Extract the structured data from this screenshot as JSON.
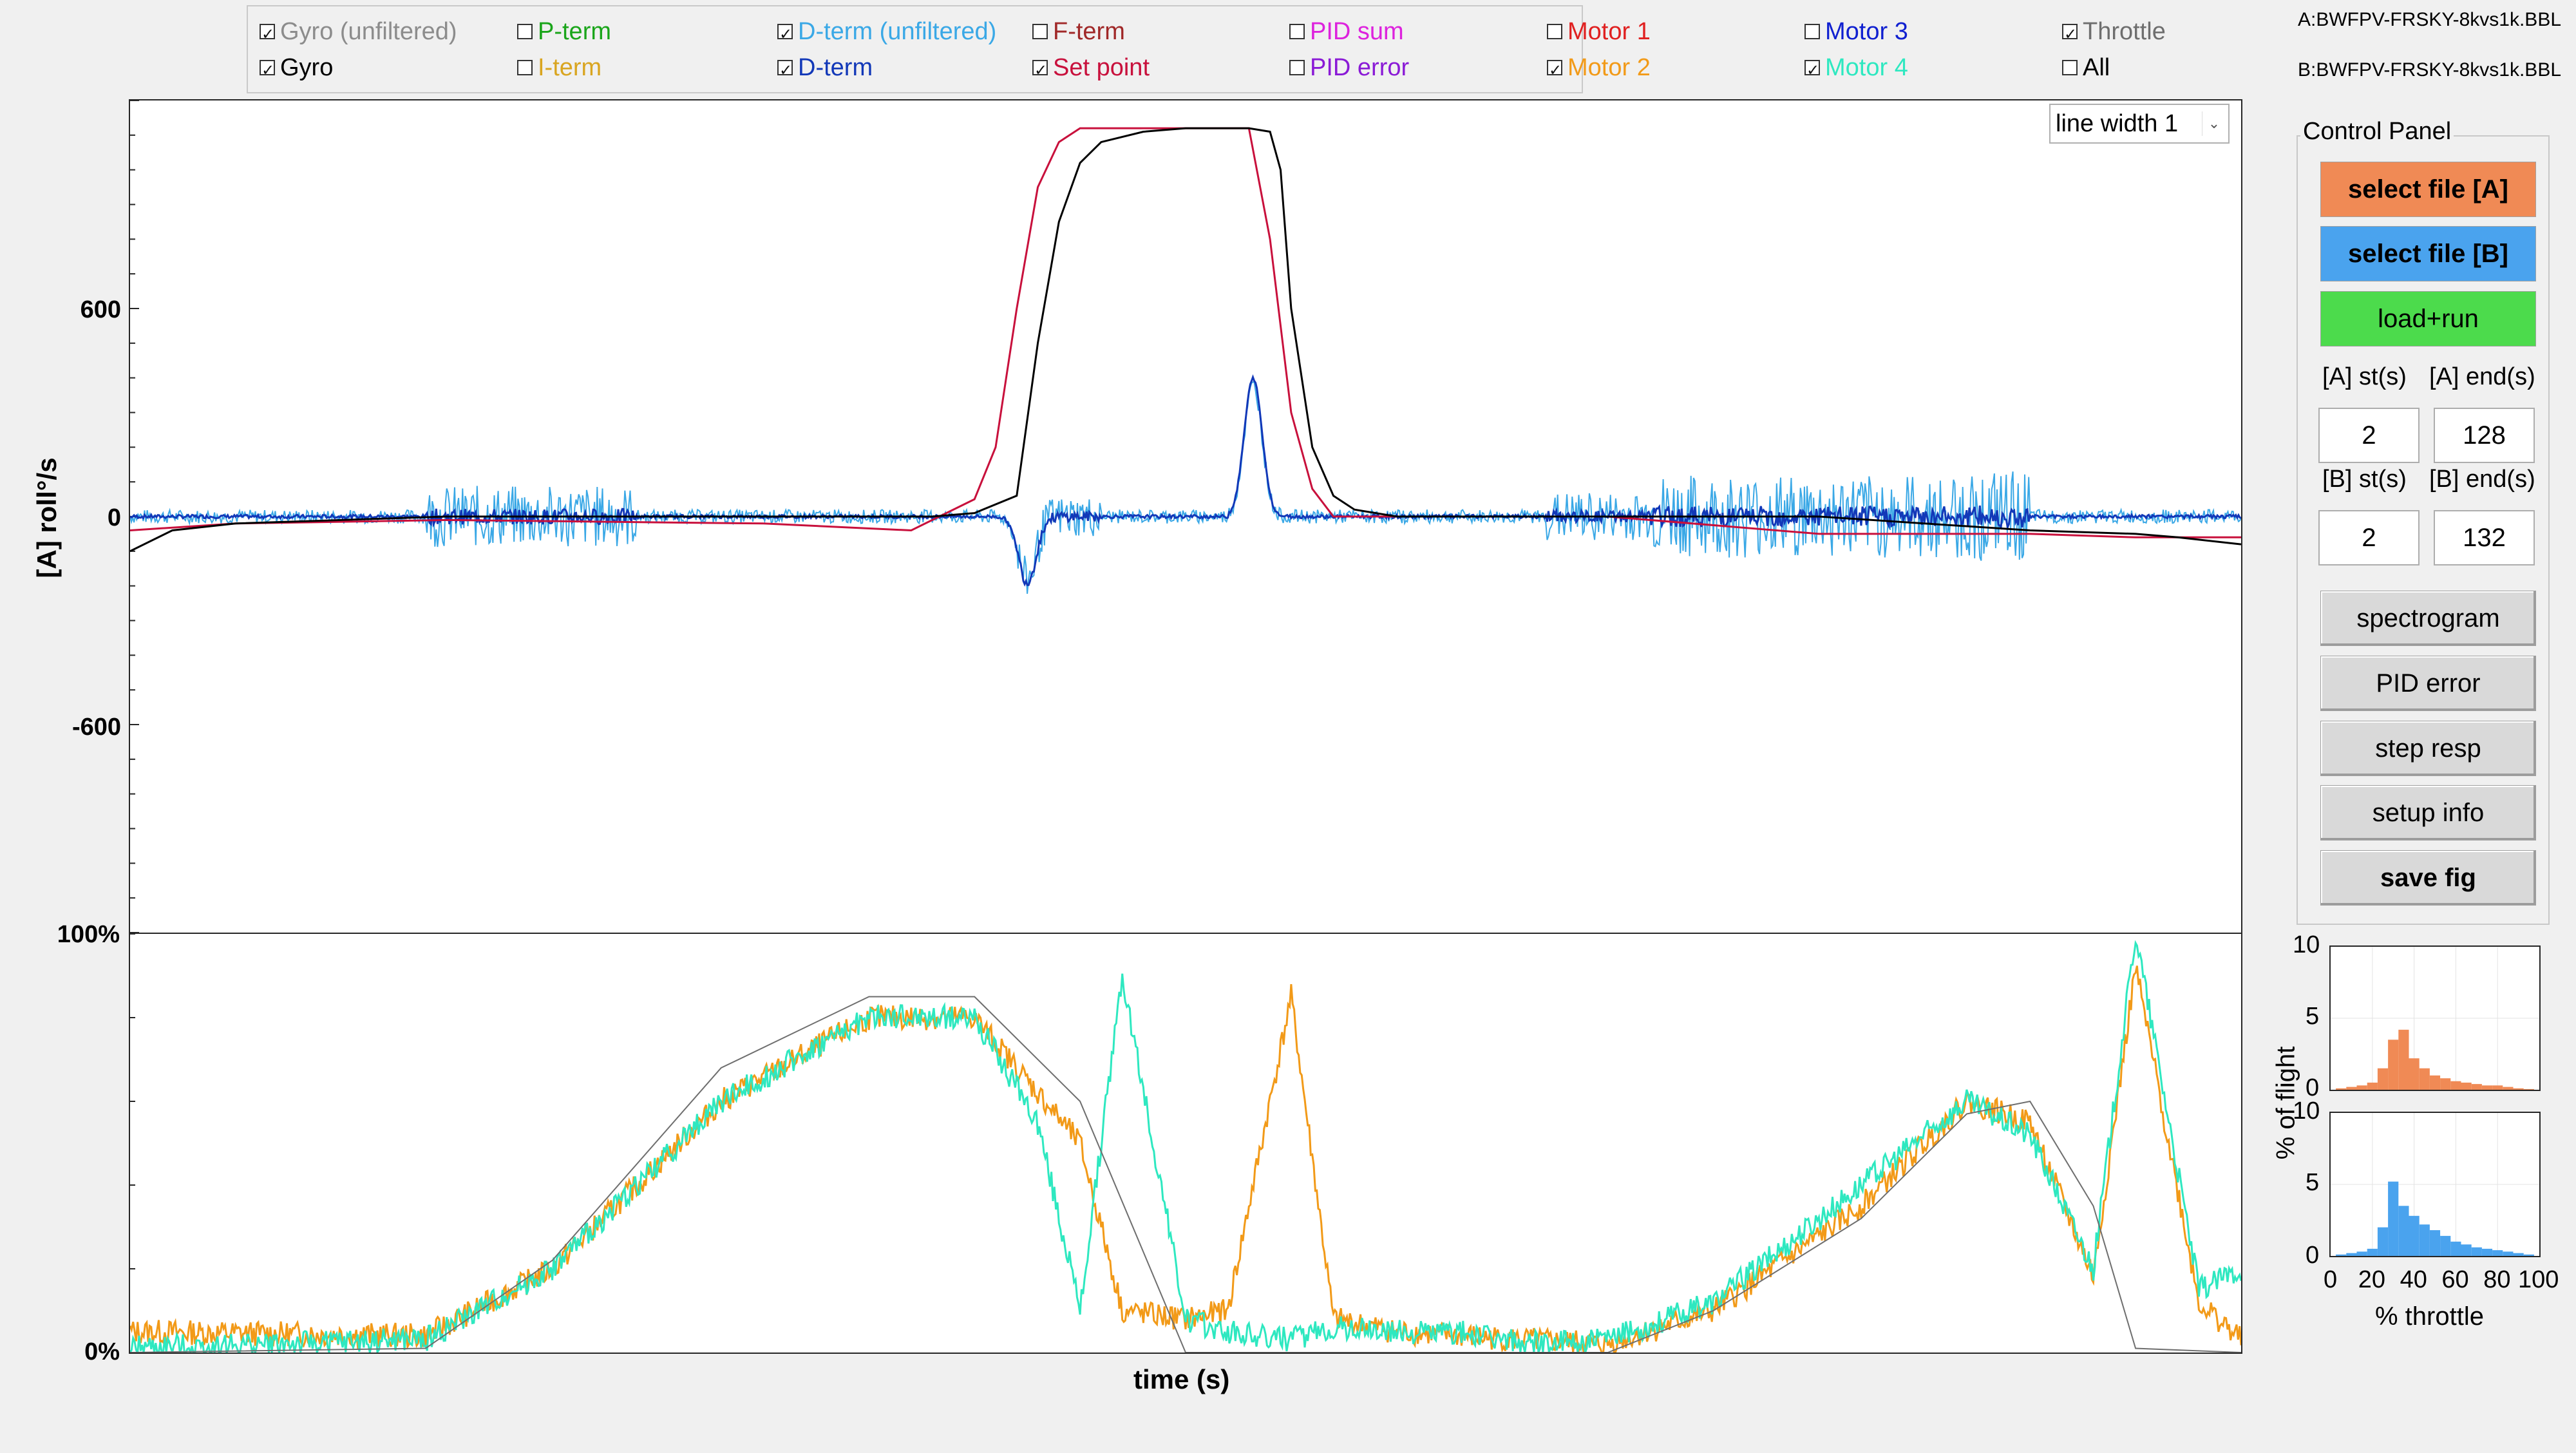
{
  "legend": {
    "items": [
      {
        "key": "gyro_unf",
        "label": "Gyro (unfiltered)",
        "checked": true,
        "color": "#8c8c8c"
      },
      {
        "key": "gyro",
        "label": "Gyro",
        "checked": true,
        "color": "#000000"
      },
      {
        "key": "pterm",
        "label": "P-term",
        "checked": false,
        "color": "#1aa51a"
      },
      {
        "key": "iterm",
        "label": "I-term",
        "checked": false,
        "color": "#d9a520"
      },
      {
        "key": "dterm_unf",
        "label": "D-term (unfiltered)",
        "checked": true,
        "color": "#3aa8e6"
      },
      {
        "key": "dterm",
        "label": "D-term",
        "checked": true,
        "color": "#1238b8"
      },
      {
        "key": "fterm",
        "label": "F-term",
        "checked": false,
        "color": "#a02828"
      },
      {
        "key": "setpoint",
        "label": "Set point",
        "checked": true,
        "color": "#c8103c"
      },
      {
        "key": "pidsum",
        "label": "PID sum",
        "checked": false,
        "color": "#dd22dd"
      },
      {
        "key": "piderr",
        "label": "PID error",
        "checked": false,
        "color": "#8a1ad6"
      },
      {
        "key": "motor1",
        "label": "Motor 1",
        "checked": false,
        "color": "#e02020"
      },
      {
        "key": "motor2",
        "label": "Motor 2",
        "checked": true,
        "color": "#f29a18"
      },
      {
        "key": "motor3",
        "label": "Motor 3",
        "checked": false,
        "color": "#1020d0"
      },
      {
        "key": "motor4",
        "label": "Motor 4",
        "checked": true,
        "color": "#2ee8c0"
      },
      {
        "key": "throttle",
        "label": "Throttle",
        "checked": true,
        "color": "#6e6e6e"
      },
      {
        "key": "all",
        "label": "All",
        "checked": false,
        "color": "#000000"
      }
    ]
  },
  "files": {
    "a": "A:BWFPV-FRSKY-8kvs1k.BBL",
    "b": "B:BWFPV-FRSKY-8kvs1k.BBL"
  },
  "dropdown": {
    "value": "line width 1"
  },
  "control_panel": {
    "title": "Control Panel",
    "select_a": "select file [A]",
    "select_b": "select file [B]",
    "load_run": "load+run",
    "a_start_label": "[A] st(s)",
    "a_end_label": "[A] end(s)",
    "a_start": "2",
    "a_end": "128",
    "b_start_label": "[B] st(s)",
    "b_end_label": "[B] end(s)",
    "b_start": "2",
    "b_end": "132",
    "buttons": [
      "spectrogram",
      "PID error",
      "step resp",
      "setup info",
      "save fig"
    ],
    "colors": {
      "select_a": "#f08a55",
      "select_b": "#4aa3ee",
      "load_run": "#4cdb4c"
    }
  },
  "main_plot": {
    "ylabel": "[A] roll°/s",
    "yticks": [
      "600",
      "0",
      "-600"
    ]
  },
  "motor_plot": {
    "yticks": [
      "100%",
      "0%"
    ],
    "xlabel": "time (s)"
  },
  "histogram": {
    "ylabel": "% of flight",
    "xlabel": "% throttle",
    "yticks_a": [
      "10",
      "5",
      "0"
    ],
    "yticks_b": [
      "10",
      "5",
      "0"
    ],
    "xticks": [
      "0",
      "20",
      "40",
      "60",
      "80",
      "100"
    ],
    "color_a": "#f08a55",
    "color_b": "#4aa3ee"
  },
  "chart_data": [
    {
      "type": "line",
      "ylabel": "[A] roll°/s",
      "ylim": [
        -1200,
        1200
      ],
      "yticks": [
        600,
        0,
        -600
      ],
      "series": [
        {
          "name": "Gyro",
          "color": "#000000",
          "x": [
            0,
            0.02,
            0.05,
            0.15,
            0.3,
            0.38,
            0.4,
            0.42,
            0.43,
            0.44,
            0.45,
            0.46,
            0.48,
            0.5,
            0.52,
            0.53,
            0.54,
            0.545,
            0.55,
            0.56,
            0.57,
            0.58,
            0.6,
            0.7,
            0.8,
            0.9,
            0.95,
            0.97,
            1.0
          ],
          "y": [
            -100,
            -40,
            -20,
            0,
            0,
            0,
            10,
            60,
            500,
            850,
            1020,
            1080,
            1110,
            1120,
            1120,
            1120,
            1110,
            1000,
            600,
            200,
            60,
            20,
            0,
            0,
            0,
            -40,
            -50,
            -60,
            -80
          ]
        },
        {
          "name": "Set point",
          "color": "#c8103c",
          "x": [
            0,
            0.05,
            0.15,
            0.3,
            0.37,
            0.38,
            0.4,
            0.41,
            0.42,
            0.43,
            0.44,
            0.45,
            0.46,
            0.48,
            0.5,
            0.52,
            0.53,
            0.54,
            0.55,
            0.56,
            0.57,
            0.6,
            0.7,
            0.8,
            0.9,
            0.95,
            1.0
          ],
          "y": [
            -40,
            -20,
            -10,
            -20,
            -40,
            -10,
            50,
            200,
            600,
            950,
            1080,
            1120,
            1120,
            1120,
            1120,
            1120,
            1120,
            800,
            300,
            80,
            0,
            0,
            0,
            -50,
            -50,
            -60,
            -60
          ]
        }
      ]
    },
    {
      "type": "line",
      "ylim": [
        0,
        100
      ],
      "yticks": [
        "100%",
        "0%"
      ],
      "xlabel": "time (s)",
      "series": [
        {
          "name": "Throttle",
          "color": "#6e6e6e",
          "x": [
            0,
            0.14,
            0.2,
            0.28,
            0.35,
            0.4,
            0.45,
            0.5,
            0.6,
            0.63,
            0.66,
            0.7,
            0.75,
            0.82,
            0.87,
            0.9,
            0.93,
            0.95,
            1.0
          ],
          "y": [
            0,
            1,
            22,
            68,
            85,
            85,
            60,
            0,
            0,
            0,
            0,
            0,
            10,
            32,
            57,
            60,
            35,
            1,
            0
          ]
        },
        {
          "name": "Motor 2",
          "color": "#f29a18",
          "x": [
            0,
            0.14,
            0.2,
            0.28,
            0.35,
            0.4,
            0.45,
            0.47,
            0.5,
            0.52,
            0.55,
            0.57,
            0.6,
            0.63,
            0.66,
            0.7,
            0.75,
            0.82,
            0.87,
            0.9,
            0.93,
            0.95,
            0.98,
            1.0
          ],
          "y": [
            5,
            4,
            20,
            60,
            80,
            80,
            50,
            10,
            8,
            10,
            85,
            8,
            5,
            4,
            3,
            2,
            10,
            35,
            60,
            55,
            18,
            92,
            12,
            3
          ]
        },
        {
          "name": "Motor 4",
          "color": "#2ee8c0",
          "x": [
            0,
            0.14,
            0.2,
            0.28,
            0.35,
            0.4,
            0.43,
            0.45,
            0.47,
            0.5,
            0.52,
            0.55,
            0.57,
            0.6,
            0.63,
            0.66,
            0.7,
            0.75,
            0.82,
            0.87,
            0.9,
            0.93,
            0.95,
            0.98,
            1.0
          ],
          "y": [
            1,
            3,
            20,
            60,
            80,
            80,
            55,
            10,
            90,
            8,
            5,
            3,
            6,
            5,
            5,
            2,
            3,
            12,
            40,
            60,
            52,
            20,
            100,
            15,
            20
          ]
        }
      ]
    },
    {
      "type": "bar",
      "title": "",
      "xlabel": "% throttle",
      "ylabel": "% of flight",
      "xlim": [
        0,
        100
      ],
      "ylim": [
        0,
        10
      ],
      "series": [
        {
          "name": "A",
          "color": "#f08a55",
          "x": [
            5,
            10,
            15,
            20,
            25,
            30,
            35,
            40,
            45,
            50,
            55,
            60,
            65,
            70,
            75,
            80,
            85,
            90,
            95
          ],
          "y": [
            0.1,
            0.2,
            0.3,
            0.5,
            1.5,
            3.5,
            4.2,
            2.2,
            1.5,
            1.0,
            0.8,
            0.6,
            0.5,
            0.4,
            0.3,
            0.3,
            0.2,
            0.1,
            0.05
          ]
        },
        {
          "name": "B",
          "color": "#4aa3ee",
          "x": [
            5,
            10,
            15,
            20,
            25,
            30,
            35,
            40,
            45,
            50,
            55,
            60,
            65,
            70,
            75,
            80,
            85,
            90,
            95
          ],
          "y": [
            0.1,
            0.2,
            0.3,
            0.5,
            2.0,
            5.2,
            3.5,
            2.8,
            2.2,
            1.8,
            1.4,
            1.0,
            0.8,
            0.6,
            0.5,
            0.4,
            0.3,
            0.2,
            0.1
          ]
        }
      ]
    }
  ]
}
